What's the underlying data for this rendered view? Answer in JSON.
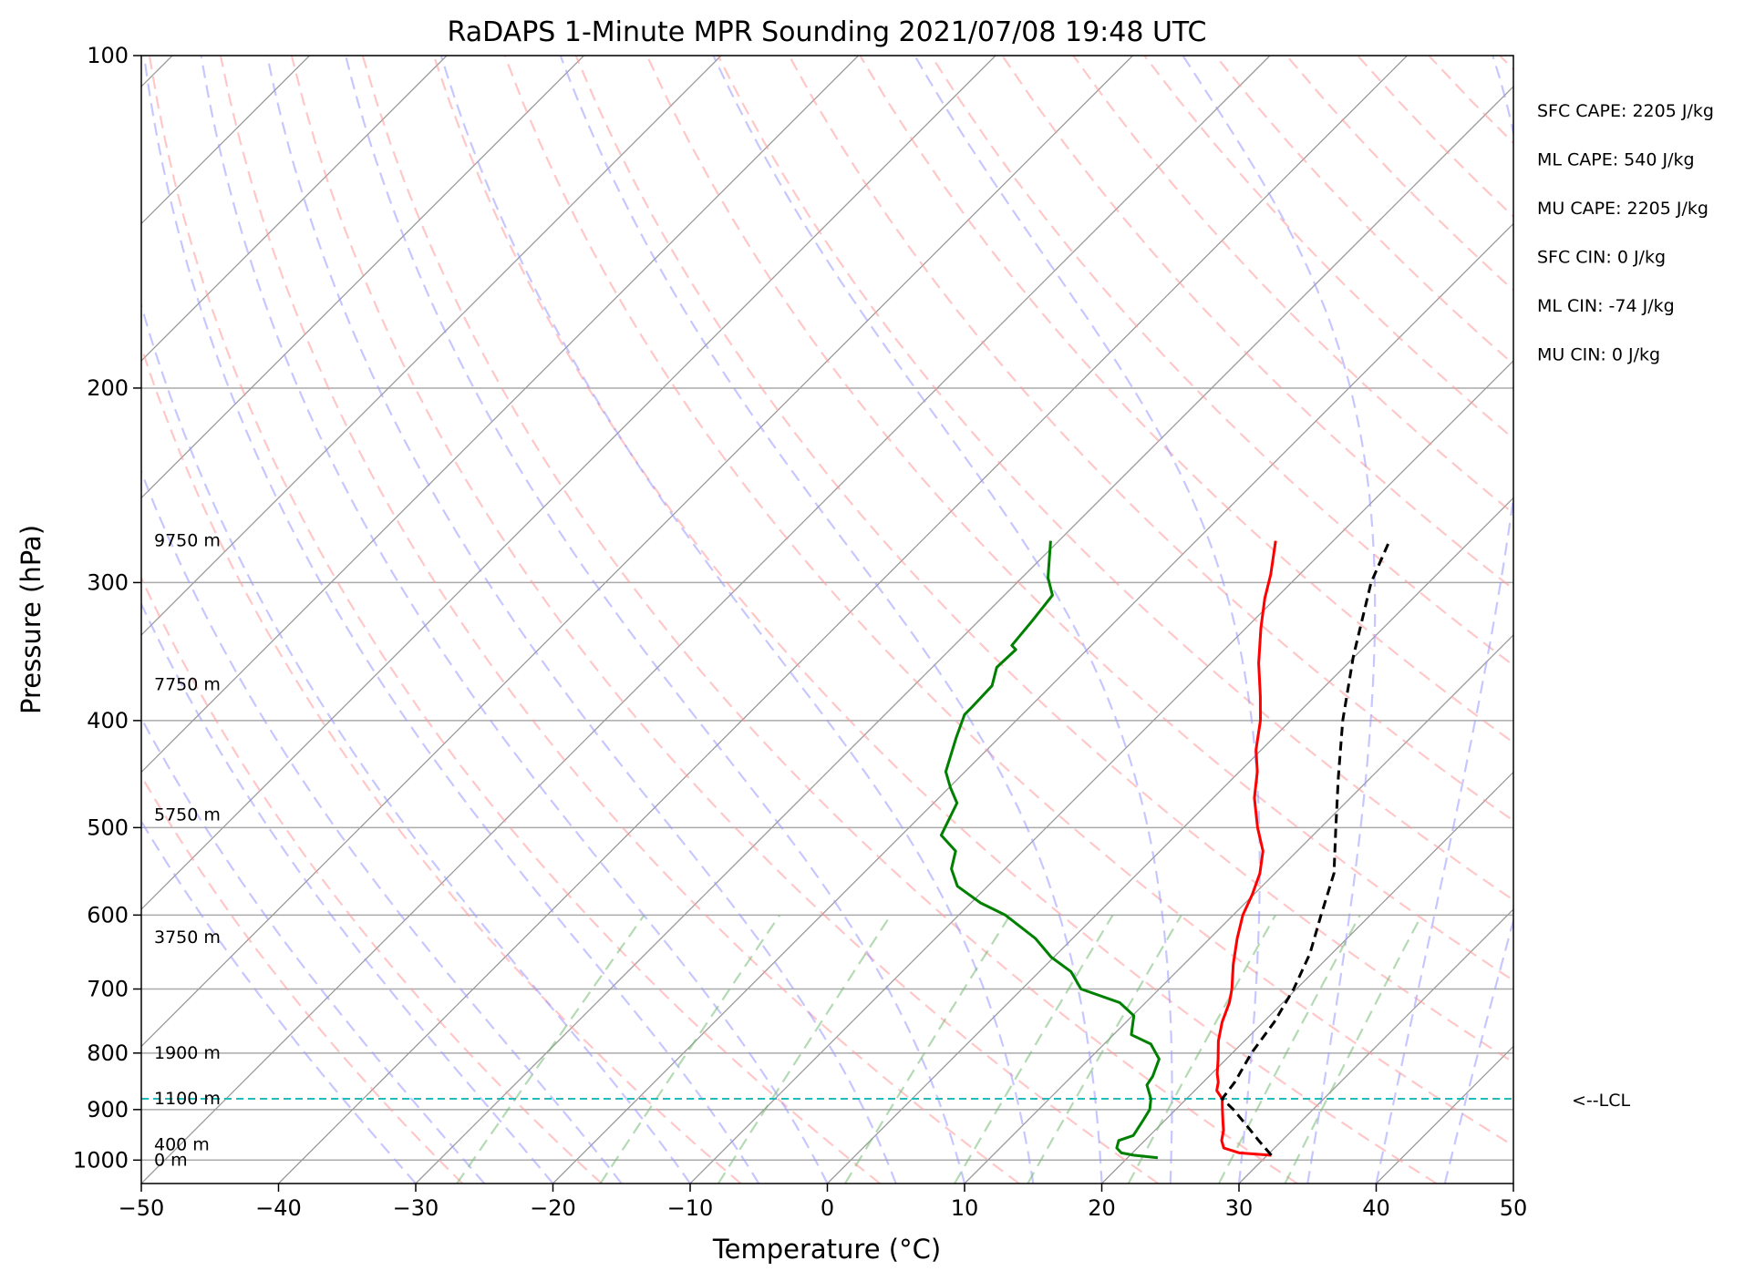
{
  "chart_data": {
    "type": "line",
    "chart_kind": "skew-T log-P sounding",
    "title": "RaDAPS 1-Minute MPR Sounding 2021/07/08 19:48 UTC",
    "xlabel": "Temperature (°C)",
    "ylabel": "Pressure (hPa)",
    "xlim": [
      -50,
      50
    ],
    "ylim": [
      1050,
      100
    ],
    "y_scale": "log",
    "x_ticks": [
      -50,
      -40,
      -30,
      -20,
      -10,
      0,
      10,
      20,
      30,
      40,
      50
    ],
    "x_tick_labels": [
      "−50",
      "−40",
      "−30",
      "−20",
      "−10",
      "0",
      "10",
      "20",
      "30",
      "40",
      "50"
    ],
    "y_ticks": [
      100,
      200,
      300,
      400,
      500,
      600,
      700,
      800,
      900,
      1000
    ],
    "y_tick_labels": [
      "100",
      "200",
      "300",
      "400",
      "500",
      "600",
      "700",
      "800",
      "900",
      "1000"
    ],
    "series": [
      {
        "key": "temperature",
        "color": "#ff0000",
        "style": "solid",
        "p": [
          990,
          985,
          975,
          960,
          940,
          920,
          900,
          880,
          865,
          850,
          835,
          810,
          780,
          750,
          720,
          700,
          665,
          630,
          600,
          575,
          550,
          525,
          500,
          470,
          445,
          425,
          400,
          380,
          355,
          330,
          310,
          295,
          275
        ],
        "t": [
          30.3,
          27.8,
          26.3,
          25.6,
          25.0,
          24.2,
          23.4,
          22.6,
          21.6,
          21.1,
          20.4,
          19.4,
          18.1,
          17.0,
          16.1,
          15.3,
          13.6,
          12.0,
          10.7,
          9.9,
          8.9,
          7.5,
          5.4,
          3.0,
          1.3,
          -0.4,
          -2.2,
          -4.0,
          -6.5,
          -8.9,
          -10.8,
          -12.1,
          -14.2
        ]
      },
      {
        "key": "dewpoint",
        "color": "#008000",
        "style": "solid",
        "p": [
          995,
          990,
          985,
          975,
          960,
          950,
          935,
          920,
          900,
          880,
          855,
          840,
          810,
          785,
          770,
          740,
          720,
          700,
          675,
          655,
          630,
          600,
          585,
          565,
          545,
          525,
          508,
          475,
          460,
          445,
          415,
          395,
          390,
          372,
          358,
          345,
          342,
          325,
          308,
          297,
          275
        ],
        "td": [
          22.2,
          20.3,
          19.2,
          18.5,
          18.1,
          18.8,
          18.6,
          18.4,
          18.1,
          17.4,
          16.1,
          15.9,
          15.1,
          13.4,
          11.3,
          10.1,
          8.1,
          4.3,
          2.3,
          -0.2,
          -2.7,
          -6.6,
          -9.3,
          -12.2,
          -13.9,
          -14.9,
          -17.1,
          -18.3,
          -19.9,
          -21.4,
          -23.1,
          -24.2,
          -24.2,
          -24.3,
          -25.3,
          -25.2,
          -25.8,
          -26.1,
          -26.5,
          -28.1,
          -30.6
        ]
      },
      {
        "key": "parcel",
        "color": "#000000",
        "style": "dashed",
        "p": [
          990,
          960,
          930,
          900,
          880,
          850,
          800,
          750,
          700,
          650,
          600,
          550,
          500,
          450,
          400,
          350,
          300,
          275
        ],
        "t": [
          30.3,
          28.3,
          26.3,
          24.2,
          22.6,
          22.3,
          21.4,
          20.8,
          19.8,
          18.4,
          16.4,
          14.3,
          11.1,
          7.6,
          3.8,
          -0.1,
          -4.2,
          -5.9
        ]
      }
    ],
    "lcl_hpa": 880,
    "lcl_label": "<--LCL",
    "height_labels": [
      {
        "p": 1000,
        "text": "0 m"
      },
      {
        "p": 969,
        "text": "400 m"
      },
      {
        "p": 880,
        "text": "1100 m"
      },
      {
        "p": 800,
        "text": "1900 m"
      },
      {
        "p": 629,
        "text": "3750 m"
      },
      {
        "p": 487,
        "text": "5750 m"
      },
      {
        "p": 371,
        "text": "7750 m"
      },
      {
        "p": 275,
        "text": "9750 m"
      }
    ],
    "indices": [
      "SFC CAPE: 2205 J/kg",
      "ML CAPE: 540 J/kg",
      "MU CAPE: 2205 J/kg",
      "SFC CIN: 0 J/kg",
      "ML CIN: -74 J/kg",
      "MU CIN: 0 J/kg"
    ],
    "grid": true,
    "colors": {
      "temperature": "#ff0000",
      "dewpoint": "#008000",
      "parcel": "#000000",
      "dry_adiabats": "#ff9999",
      "moist_adiabats": "#9999ff",
      "mixing_ratio": "#77bb77",
      "isotherms": "#999999",
      "isobars": "#aaaaaa",
      "lcl": "#22bbbb"
    }
  }
}
